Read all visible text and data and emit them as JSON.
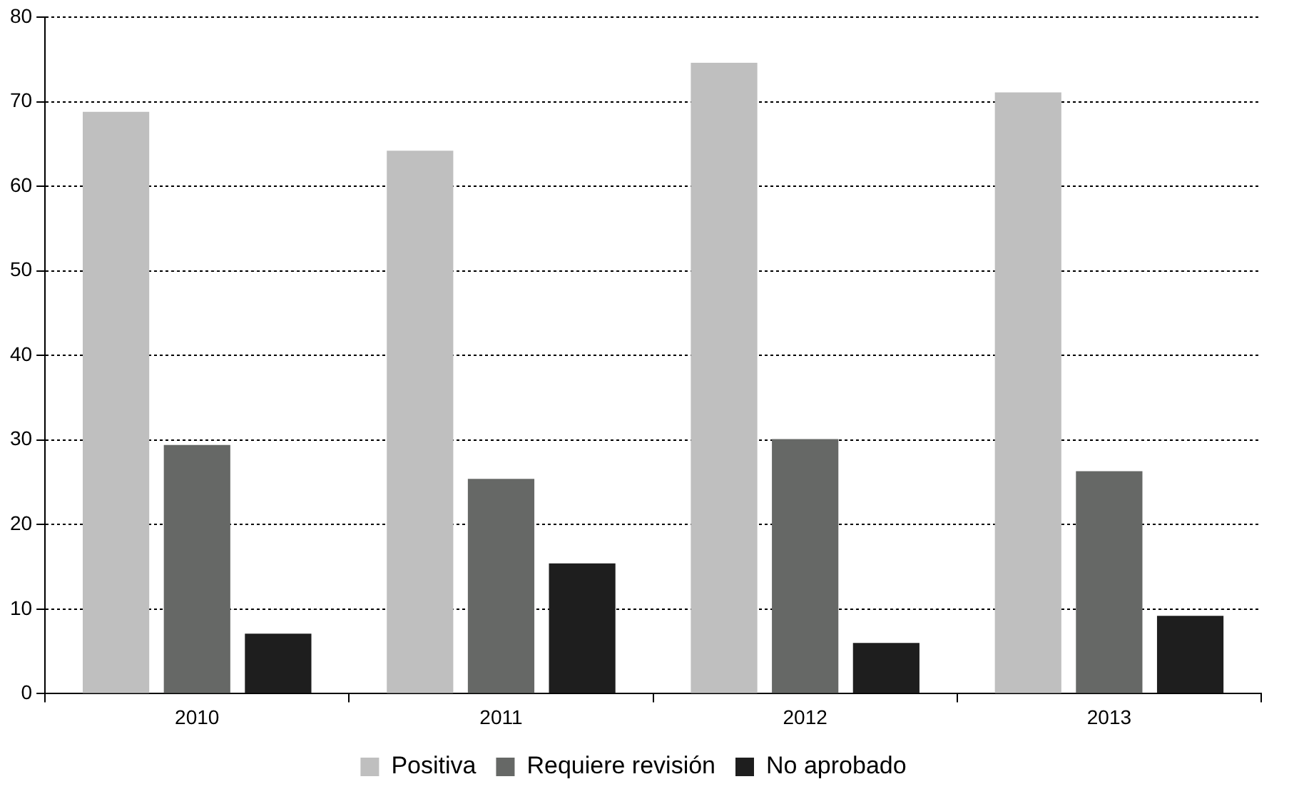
{
  "chart_data": {
    "type": "bar",
    "categories": [
      "2010",
      "2011",
      "2012",
      "2013"
    ],
    "series": [
      {
        "name": "Positiva",
        "color": "#bfbfbf",
        "values": [
          68.8,
          64.2,
          74.6,
          71.1
        ]
      },
      {
        "name": "Requiere revisión",
        "color": "#666866",
        "values": [
          29.4,
          25.4,
          30.1,
          26.3
        ]
      },
      {
        "name": "No aprobado",
        "color": "#1e1e1e",
        "values": [
          7.1,
          15.4,
          6.0,
          9.2
        ]
      }
    ],
    "ylim": [
      0,
      80
    ],
    "yticks": [
      0,
      10,
      20,
      30,
      40,
      50,
      60,
      70,
      80
    ],
    "grid": "y",
    "legend": "bottom"
  }
}
